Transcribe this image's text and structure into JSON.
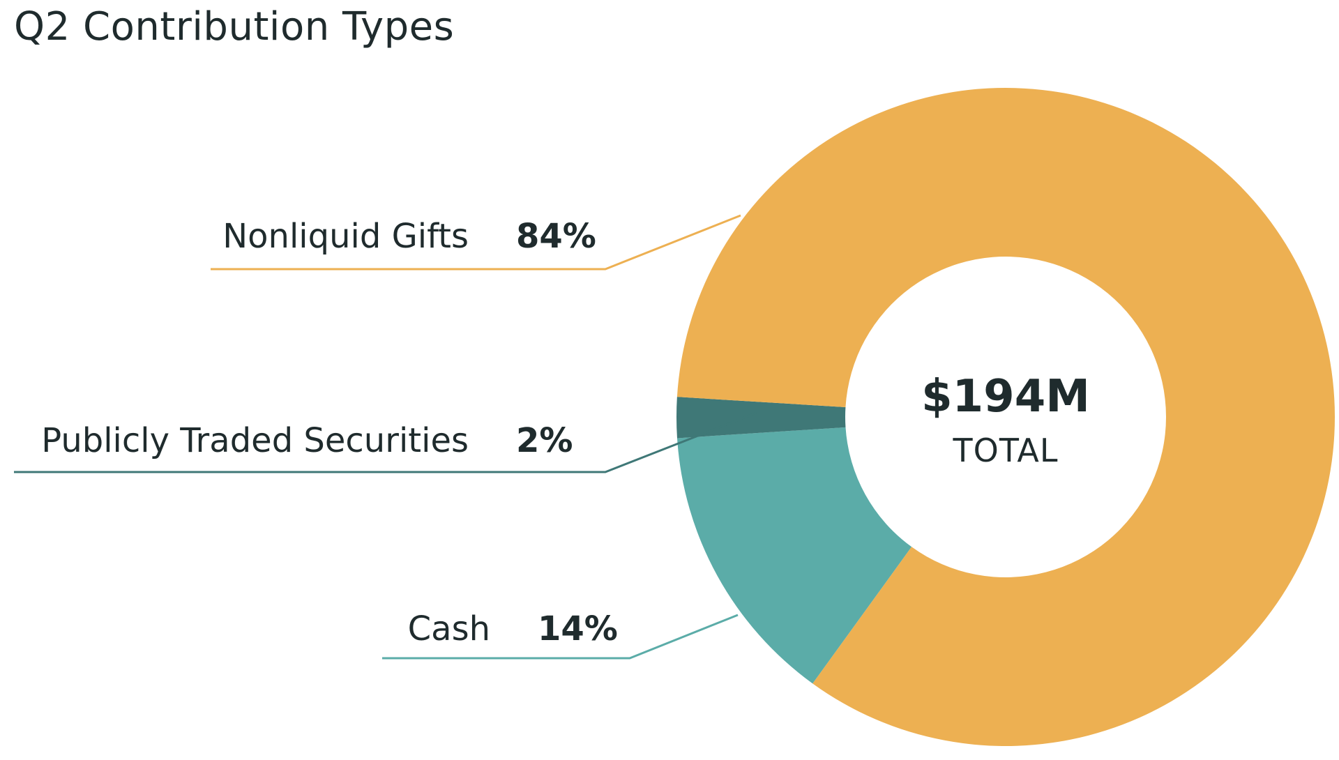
{
  "chart_data": {
    "type": "pie",
    "title": "Q2 Contribution Types",
    "center_value": "$194M",
    "center_caption": "TOTAL",
    "categories": [
      "Nonliquid Gifts",
      "Publicly Traded Securities",
      "Cash"
    ],
    "values": [
      84,
      2,
      14
    ],
    "value_labels": [
      "84%",
      "2%",
      "14%"
    ],
    "colors": [
      "#EDB052",
      "#3F7877",
      "#5BACA8"
    ],
    "legend": "none"
  }
}
